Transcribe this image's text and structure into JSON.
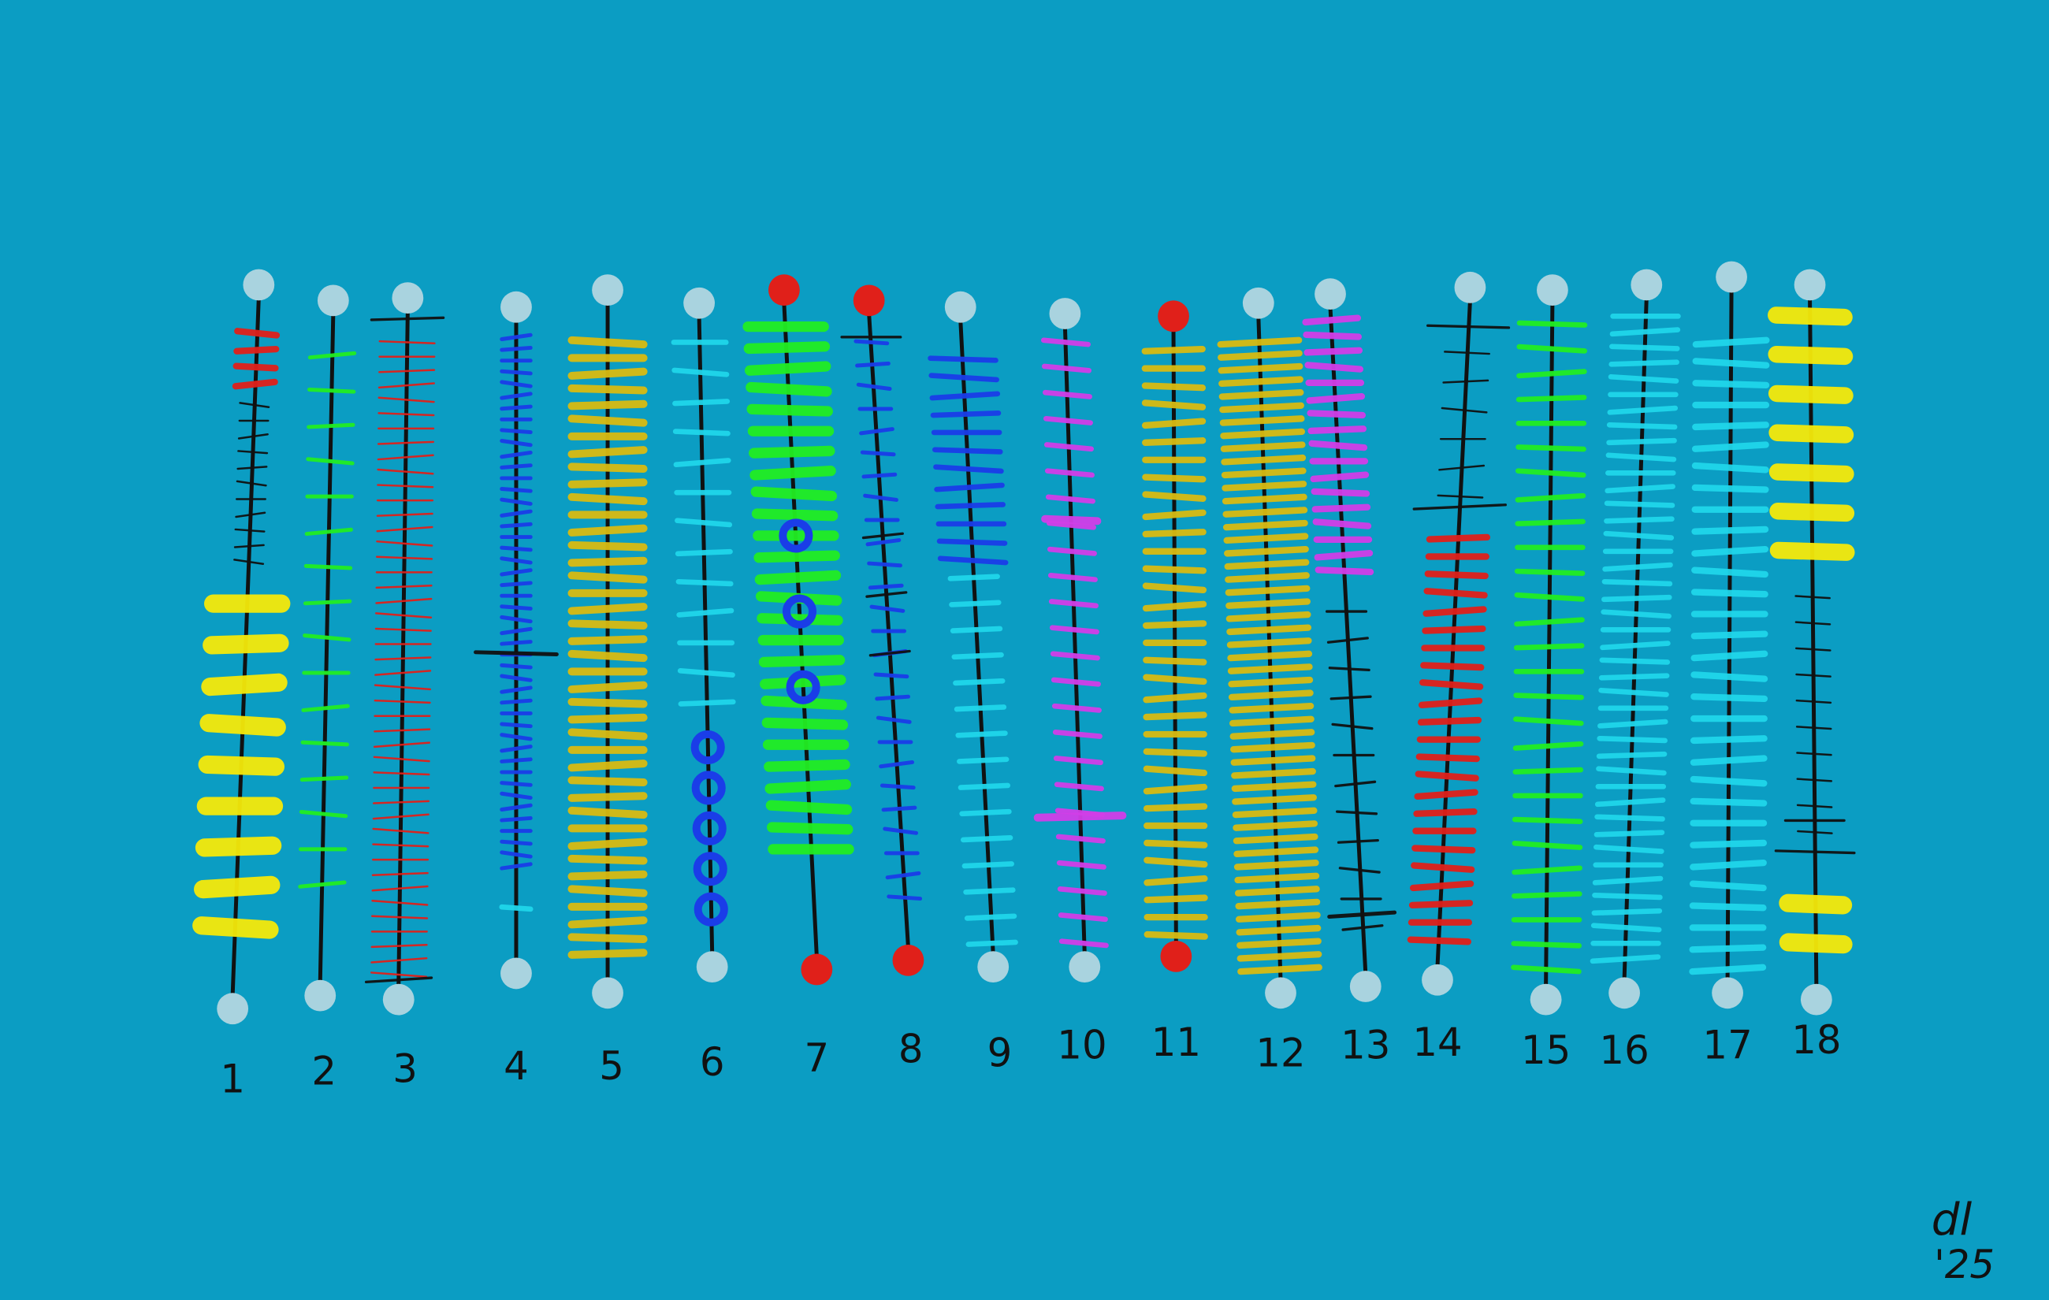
{
  "column_labels": [
    "1",
    "2",
    "3",
    "4",
    "5",
    "6",
    "7",
    "8",
    "9",
    "10",
    "11",
    "12",
    "13",
    "14",
    "15",
    "16",
    "17",
    "18"
  ],
  "signature": {
    "line1": "dl",
    "line2": "'25"
  }
}
